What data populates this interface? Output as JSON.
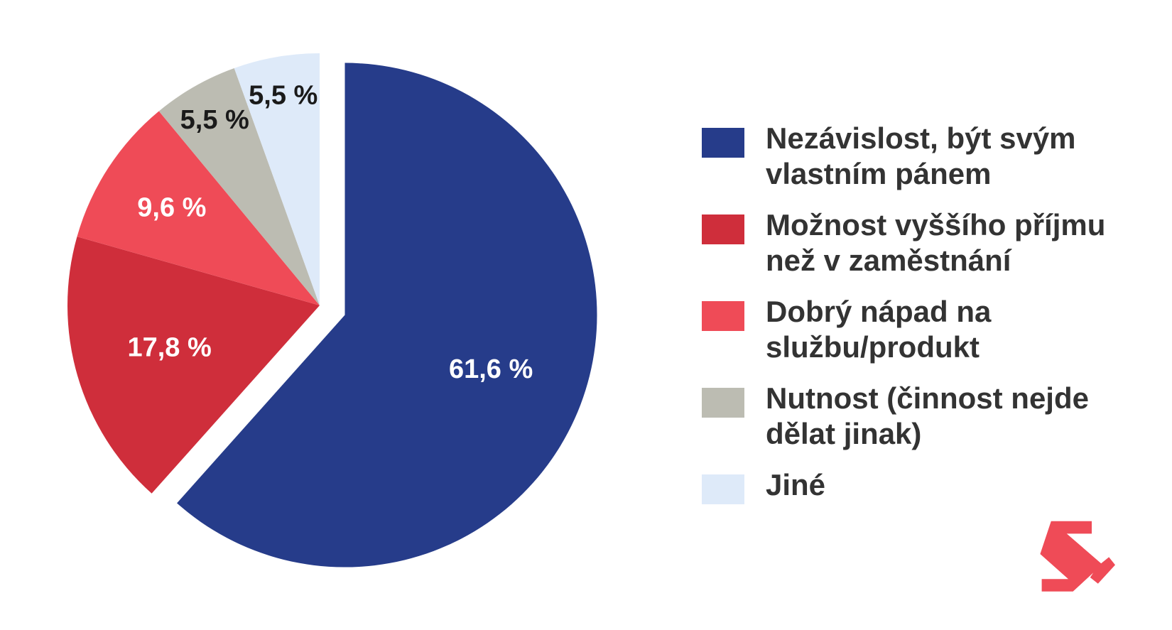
{
  "chart_data": {
    "type": "pie",
    "title": "",
    "exploded_slice": "Nezávislost, být svým vlastním pánem",
    "slices": [
      {
        "label": "Nezávislost, být svým vlastním pánem",
        "legend_text": "Nezávislost, být svým\nvlastním pánem",
        "value": 61.6,
        "display": "61,6 %",
        "color": "#263c8a",
        "label_color": "#ffffff"
      },
      {
        "label": "Možnost vyššího příjmu než v zaměstnání",
        "legend_text": "Možnost vyššího příjmu\nnež v zaměstnání",
        "value": 17.8,
        "display": "17,8 %",
        "color": "#cf2e3b",
        "label_color": "#ffffff"
      },
      {
        "label": "Dobrý nápad na službu/produkt",
        "legend_text": "Dobrý nápad na\nslužbu/produkt",
        "value": 9.6,
        "display": "9,6 %",
        "color": "#ef4b57",
        "label_color": "#ffffff"
      },
      {
        "label": "Nutnost (činnost nejde dělat jinak)",
        "legend_text": "Nutnost (činnost nejde\ndělat jinak)",
        "value": 5.5,
        "display": "5,5 %",
        "color": "#bcbcb2",
        "label_color": "#1a1a1a"
      },
      {
        "label": "Jiné",
        "legend_text": "Jiné",
        "value": 5.5,
        "display": "5,5 %",
        "color": "#deeaf9",
        "label_color": "#1a1a1a"
      }
    ],
    "legend_position": "right"
  },
  "logo": {
    "name": "brand-logo",
    "color": "#ef4b57"
  }
}
